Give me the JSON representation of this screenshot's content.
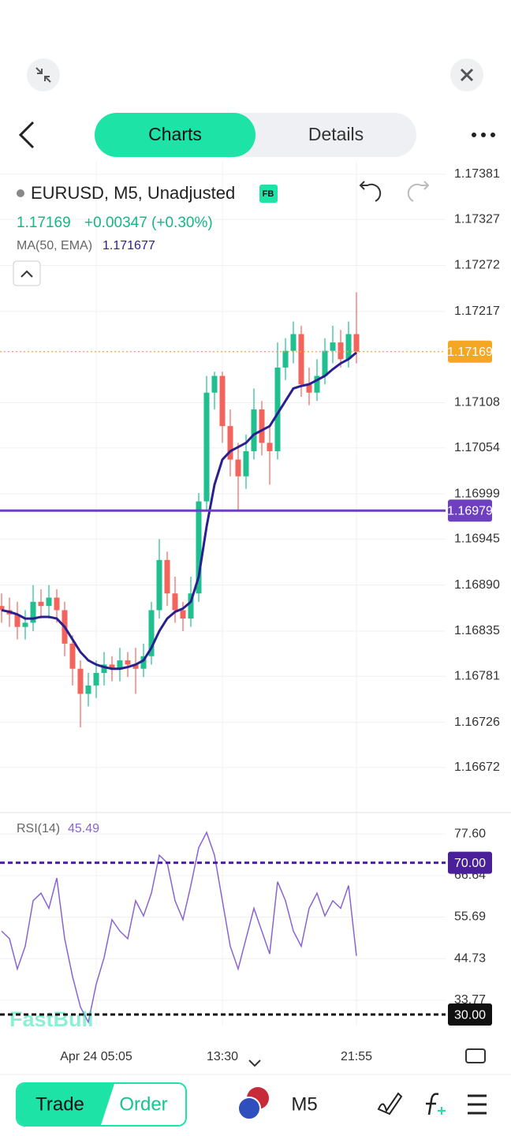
{
  "ui": {
    "tabs": [
      "Charts",
      "Details"
    ],
    "symbol": "EURUSD, M5, Unadjusted",
    "badge": "FB",
    "price": "1.17169",
    "change": "+0.00347 (+0.30%)",
    "watermark": "FastBull",
    "trade": "Trade",
    "order": "Order",
    "timeframe": "M5"
  },
  "chart_data": [
    {
      "type": "candlestick",
      "categories": [
        null,
        null,
        null,
        null,
        null,
        null,
        null,
        null,
        null,
        null,
        null,
        null,
        "Apr 24 05:05",
        null,
        null,
        null,
        null,
        null,
        null,
        null,
        null,
        null,
        null,
        null,
        null,
        null,
        null,
        null,
        "13:30",
        null,
        null,
        null,
        null,
        null,
        null,
        null,
        null,
        null,
        null,
        null,
        null,
        null,
        null,
        null,
        null,
        "21:55"
      ],
      "open": [
        1.16865,
        1.1686,
        1.16855,
        1.1684,
        1.16845,
        1.1687,
        1.16865,
        1.16875,
        1.1686,
        1.1682,
        1.1679,
        1.1676,
        1.1677,
        1.16785,
        1.16795,
        1.1679,
        1.168,
        1.16795,
        1.1679,
        1.16805,
        1.1686,
        1.1692,
        1.1688,
        1.1686,
        1.1685,
        1.1688,
        1.1699,
        1.1712,
        1.1714,
        1.1708,
        1.1704,
        1.1702,
        1.1705,
        1.171,
        1.1706,
        1.1705,
        1.1715,
        1.1717,
        1.1719,
        1.1713,
        1.1712,
        1.1714,
        1.1717,
        1.1718,
        1.1716,
        1.1719
      ],
      "high": [
        1.1688,
        1.16875,
        1.1687,
        1.1686,
        1.1689,
        1.16885,
        1.1689,
        1.16885,
        1.1687,
        1.1683,
        1.168,
        1.16785,
        1.168,
        1.1681,
        1.16805,
        1.16815,
        1.1681,
        1.16815,
        1.1682,
        1.1687,
        1.16945,
        1.1693,
        1.169,
        1.1687,
        1.169,
        1.17,
        1.1714,
        1.17145,
        1.17145,
        1.171,
        1.1706,
        1.1707,
        1.17125,
        1.1711,
        1.1708,
        1.1718,
        1.17185,
        1.17205,
        1.172,
        1.1715,
        1.1716,
        1.17185,
        1.172,
        1.17195,
        1.17205,
        1.1724
      ],
      "low": [
        1.16845,
        1.1684,
        1.16825,
        1.16825,
        1.16835,
        1.1685,
        1.1685,
        1.16845,
        1.16805,
        1.1677,
        1.1672,
        1.16745,
        1.16755,
        1.1677,
        1.16775,
        1.16775,
        1.1678,
        1.1676,
        1.1678,
        1.16795,
        1.1685,
        1.16865,
        1.16845,
        1.16835,
        1.1684,
        1.1687,
        1.1698,
        1.171,
        1.1706,
        1.1702,
        1.1698,
        1.17005,
        1.1704,
        1.17045,
        1.1701,
        1.1704,
        1.17135,
        1.17155,
        1.17115,
        1.17105,
        1.1711,
        1.1713,
        1.17155,
        1.1715,
        1.1715,
        1.17155
      ],
      "close": [
        1.1686,
        1.16855,
        1.1684,
        1.16845,
        1.1687,
        1.16865,
        1.16875,
        1.1686,
        1.1682,
        1.1679,
        1.1676,
        1.1677,
        1.16785,
        1.16795,
        1.1679,
        1.168,
        1.16795,
        1.1679,
        1.16805,
        1.1686,
        1.1692,
        1.1688,
        1.1686,
        1.1685,
        1.1688,
        1.1699,
        1.1712,
        1.1714,
        1.1708,
        1.1704,
        1.1702,
        1.1705,
        1.171,
        1.1706,
        1.1705,
        1.1715,
        1.1717,
        1.1719,
        1.1713,
        1.1712,
        1.1714,
        1.1717,
        1.1718,
        1.1716,
        1.1719,
        1.17169
      ],
      "color_up": "#1fbf8f",
      "color_down": "#f2645c",
      "ylim": [
        1.1662,
        1.17396
      ],
      "yticks": [
        1.17381,
        1.17327,
        1.17272,
        1.17217,
        1.17108,
        1.17054,
        1.16999,
        1.16945,
        {
          "value": 1.1689,
          "label": "1.16890"
        },
        1.16835,
        1.16781,
        1.16726,
        1.16672
      ],
      "indicator": {
        "name": "MA(50, EMA)",
        "value": 1.171677,
        "color": "#2a1f8f",
        "values": [
          1.1686,
          1.16858,
          1.16855,
          1.1685,
          1.1685,
          1.16852,
          1.16852,
          1.1685,
          1.1684,
          1.16825,
          1.1681,
          1.168,
          1.16795,
          1.16792,
          1.1679,
          1.1679,
          1.16792,
          1.16795,
          1.168,
          1.16815,
          1.16835,
          1.1685,
          1.16858,
          1.16862,
          1.1687,
          1.169,
          1.1696,
          1.1701,
          1.1704,
          1.1705,
          1.17055,
          1.1706,
          1.1707,
          1.17075,
          1.1708,
          1.17095,
          1.1711,
          1.17125,
          1.17128,
          1.1713,
          1.17135,
          1.1714,
          1.17148,
          1.17155,
          1.1716,
          1.17168
        ]
      },
      "lines": [
        {
          "value": 1.17169,
          "color": "#f5a623",
          "style": "dotted"
        },
        {
          "value": 1.16979,
          "color": "#6e3fbf",
          "style": "solid"
        }
      ]
    },
    {
      "type": "line",
      "title": "RSI(14)",
      "value": 45.49,
      "color": "#8a63d2",
      "values": [
        52,
        50,
        42,
        48,
        60,
        62,
        58,
        66,
        50,
        40,
        32,
        28,
        38,
        45,
        55,
        52,
        50,
        60,
        56,
        62,
        72,
        70,
        60,
        55,
        64,
        74,
        78,
        72,
        60,
        48,
        42,
        50,
        58,
        52,
        46,
        65,
        60,
        52,
        48,
        58,
        62,
        56,
        60,
        58,
        64,
        45.49
      ],
      "ylim": [
        27.1,
        82.2
      ],
      "yticks": [
        {
          "value": 77.6,
          "label": "77.60"
        },
        66.64,
        55.69,
        44.73,
        33.77
      ],
      "lines": [
        {
          "value": 70,
          "label": "70.00",
          "color": "#4a1f9a",
          "style": "dashed"
        },
        {
          "value": 30,
          "label": "30.00",
          "color": "#111111",
          "style": "dashed"
        }
      ]
    }
  ]
}
